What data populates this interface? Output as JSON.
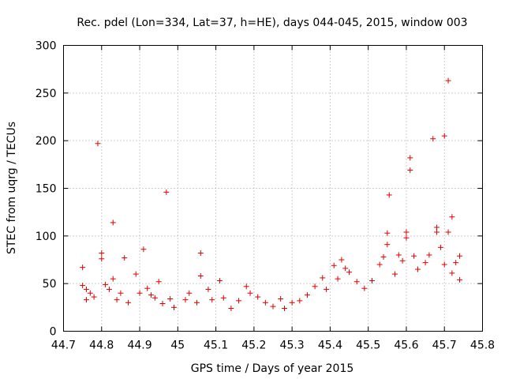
{
  "chart_data": {
    "type": "scatter",
    "title": "Rec. pdel (Lon=334, Lat=37, h=HE), days 044-045, 2015, window 003",
    "xlabel": "GPS time / Days of year 2015",
    "ylabel": "STEC from uqrg / TECUs",
    "xlim": [
      44.7,
      45.8
    ],
    "ylim": [
      0,
      300
    ],
    "xticks": [
      "44.7",
      "44.8",
      "44.9",
      "45",
      "45.1",
      "45.2",
      "45.3",
      "45.4",
      "45.5",
      "45.6",
      "45.7",
      "45.8"
    ],
    "yticks": [
      "0",
      "50",
      "100",
      "150",
      "200",
      "250",
      "300"
    ],
    "grid": true,
    "legend": "none",
    "marker": "+",
    "color": "#e00000",
    "series": [
      {
        "points": [
          [
            44.75,
            67
          ],
          [
            44.75,
            48
          ],
          [
            44.76,
            44
          ],
          [
            44.76,
            33
          ],
          [
            44.77,
            40
          ],
          [
            44.78,
            36
          ],
          [
            44.79,
            197
          ],
          [
            44.8,
            82
          ],
          [
            44.8,
            76
          ],
          [
            44.81,
            49
          ],
          [
            44.82,
            44
          ],
          [
            44.83,
            55
          ],
          [
            44.83,
            114
          ],
          [
            44.84,
            33
          ],
          [
            44.85,
            40
          ],
          [
            44.86,
            77
          ],
          [
            44.87,
            30
          ],
          [
            44.89,
            60
          ],
          [
            44.9,
            40
          ],
          [
            44.91,
            86
          ],
          [
            44.92,
            45
          ],
          [
            44.93,
            38
          ],
          [
            44.94,
            35
          ],
          [
            44.95,
            52
          ],
          [
            44.96,
            29
          ],
          [
            44.97,
            146
          ],
          [
            44.98,
            34
          ],
          [
            44.99,
            25
          ],
          [
            45.02,
            33
          ],
          [
            45.03,
            40
          ],
          [
            45.05,
            30
          ],
          [
            45.06,
            82
          ],
          [
            45.06,
            58
          ],
          [
            45.08,
            44
          ],
          [
            45.09,
            33
          ],
          [
            45.11,
            53
          ],
          [
            45.12,
            35
          ],
          [
            45.14,
            24
          ],
          [
            45.16,
            32
          ],
          [
            45.18,
            47
          ],
          [
            45.19,
            40
          ],
          [
            45.21,
            36
          ],
          [
            45.23,
            30
          ],
          [
            45.25,
            26
          ],
          [
            45.27,
            34
          ],
          [
            45.28,
            24
          ],
          [
            45.3,
            30
          ],
          [
            45.32,
            32
          ],
          [
            45.34,
            38
          ],
          [
            45.36,
            47
          ],
          [
            45.38,
            56
          ],
          [
            45.39,
            44
          ],
          [
            45.41,
            69
          ],
          [
            45.42,
            55
          ],
          [
            45.43,
            75
          ],
          [
            45.44,
            66
          ],
          [
            45.45,
            62
          ],
          [
            45.47,
            52
          ],
          [
            45.49,
            45
          ],
          [
            45.51,
            53
          ],
          [
            45.53,
            70
          ],
          [
            45.54,
            78
          ],
          [
            45.55,
            91
          ],
          [
            45.55,
            103
          ],
          [
            45.555,
            143
          ],
          [
            45.57,
            60
          ],
          [
            45.58,
            80
          ],
          [
            45.59,
            74
          ],
          [
            45.6,
            98
          ],
          [
            45.6,
            104
          ],
          [
            45.61,
            182
          ],
          [
            45.61,
            169
          ],
          [
            45.62,
            79
          ],
          [
            45.63,
            65
          ],
          [
            45.65,
            72
          ],
          [
            45.66,
            80
          ],
          [
            45.67,
            202
          ],
          [
            45.68,
            109
          ],
          [
            45.68,
            104
          ],
          [
            45.69,
            88
          ],
          [
            45.7,
            205
          ],
          [
            45.7,
            70
          ],
          [
            45.71,
            263
          ],
          [
            45.71,
            104
          ],
          [
            45.72,
            120
          ],
          [
            45.72,
            61
          ],
          [
            45.73,
            72
          ],
          [
            45.74,
            79
          ],
          [
            45.74,
            54
          ]
        ]
      }
    ]
  }
}
